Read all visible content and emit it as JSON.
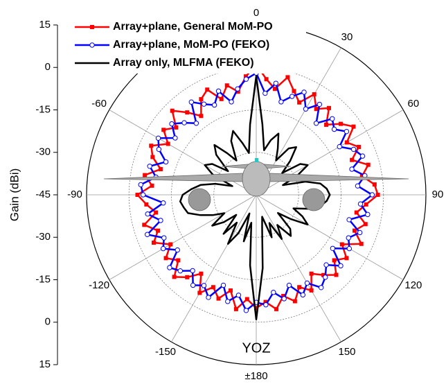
{
  "chart_data": {
    "type": "polar",
    "xlabel": "Gain (dBi)",
    "annotation": "YOZ",
    "legend": "upper-left",
    "rlim": [
      -45,
      15
    ],
    "rticks": [
      -45,
      -30,
      -15,
      0,
      15
    ],
    "angle_ticks": [
      0,
      30,
      60,
      90,
      120,
      150,
      {
        "value": 180,
        "label": "±180"
      },
      -150,
      -120,
      -90,
      -60
    ],
    "x": [
      -180,
      -175,
      -170,
      -165,
      -160,
      -155,
      -150,
      -145,
      -140,
      -135,
      -130,
      -125,
      -120,
      -115,
      -110,
      -105,
      -100,
      -95,
      -90,
      -85,
      -80,
      -75,
      -70,
      -65,
      -60,
      -55,
      -50,
      -45,
      -40,
      -35,
      -30,
      -25,
      -20,
      -15,
      -10,
      -5,
      0,
      5,
      10,
      15,
      20,
      25,
      30,
      35,
      40,
      45,
      50,
      55,
      60,
      65,
      70,
      75,
      80,
      85,
      90,
      95,
      100,
      105,
      110,
      115,
      120,
      125,
      130,
      135,
      140,
      145,
      150,
      155,
      160,
      165,
      170,
      175
    ],
    "series": [
      {
        "name": "Array+plane, General MoM-PO",
        "color": "#ff0000",
        "marker": "square",
        "values": [
          -5,
          -8,
          -4,
          -10,
          -6,
          -9,
          -5,
          -11,
          -7,
          -4,
          -9,
          -6,
          -10,
          -5,
          -8,
          -4,
          -9,
          -6,
          -3,
          -8,
          -5,
          -10,
          -6,
          -4,
          -9,
          -5,
          -8,
          -3,
          -7,
          -11,
          -6,
          -4,
          -9,
          -5,
          -8,
          -3,
          1,
          -4,
          -7,
          -2,
          -6,
          -9,
          -4,
          -8,
          -5,
          -10,
          -6,
          -3,
          -8,
          -5,
          -9,
          -4,
          -7,
          -3,
          -2,
          -6,
          -9,
          -5,
          -8,
          -4,
          -10,
          -6,
          -9,
          -5,
          -8,
          -11,
          -6,
          -9,
          -5,
          -8,
          -4,
          -7
        ]
      },
      {
        "name": "Array+plane, MoM-PO (FEKO)",
        "color": "#0000ff",
        "marker": "circle",
        "values": [
          -7,
          -4,
          -9,
          -6,
          -11,
          -5,
          -8,
          -6,
          -10,
          -7,
          -5,
          -11,
          -7,
          -9,
          -4,
          -10,
          -6,
          -12,
          -5,
          -4,
          -9,
          -6,
          -11,
          -7,
          -5,
          -10,
          -6,
          -9,
          -12,
          -5,
          -8,
          -10,
          -6,
          -11,
          -7,
          -4,
          -2,
          -9,
          -5,
          -11,
          -8,
          -5,
          -10,
          -6,
          -12,
          -7,
          -9,
          -6,
          -11,
          -7,
          -5,
          -10,
          -6,
          -9,
          -4,
          -8,
          -5,
          -11,
          -6,
          -9,
          -7,
          -12,
          -6,
          -10,
          -7,
          -5,
          -9,
          -6,
          -11,
          -7,
          -10,
          -6
        ]
      },
      {
        "name": "Array only, MLFMA (FEKO)",
        "color": "#000000",
        "marker": "none",
        "values": [
          -1,
          -20,
          -35,
          -28,
          -38,
          -30,
          -25,
          -33,
          -27,
          -35,
          -30,
          -26,
          -32,
          -28,
          -24,
          -20,
          -19,
          -18,
          -19,
          -22,
          -25,
          -30,
          -36,
          -28,
          -24,
          -26,
          -32,
          -25,
          -22,
          -27,
          -31,
          -24,
          -21,
          -26,
          -30,
          -20,
          -3,
          -20,
          -29,
          -25,
          -22,
          -27,
          -31,
          -25,
          -23,
          -28,
          -33,
          -26,
          -24,
          -29,
          -35,
          -27,
          -22,
          -20,
          -19,
          -20,
          -22,
          -26,
          -31,
          -27,
          -24,
          -30,
          -35,
          -28,
          -26,
          -32,
          -27,
          -34,
          -29,
          -37,
          -33,
          -19
        ]
      }
    ]
  }
}
